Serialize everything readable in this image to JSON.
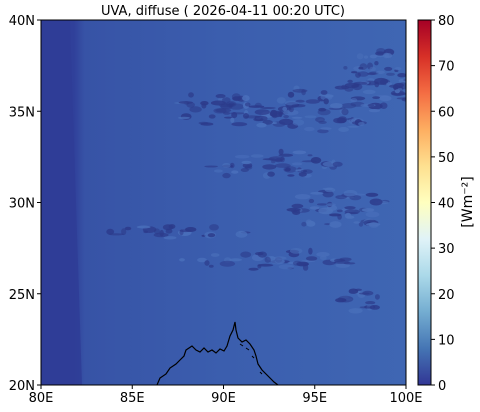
{
  "figure": {
    "title": "UVA, diffuse ( 2026-04-11 00:20 UTC)"
  },
  "map": {
    "lon_range": [
      80,
      100
    ],
    "lat_range": [
      20,
      40
    ],
    "x_ticks": [
      {
        "value": 80,
        "label": "80E"
      },
      {
        "value": 85,
        "label": "85E"
      },
      {
        "value": 90,
        "label": "90E"
      },
      {
        "value": 95,
        "label": "95E"
      },
      {
        "value": 100,
        "label": "100E"
      }
    ],
    "y_ticks": [
      {
        "value": 20,
        "label": "20N"
      },
      {
        "value": 25,
        "label": "25N"
      },
      {
        "value": 30,
        "label": "30N"
      },
      {
        "value": 35,
        "label": "35N"
      },
      {
        "value": 40,
        "label": "40N"
      }
    ],
    "background_color": "#3a5dad",
    "left_band_color": "#2f3f98",
    "cloud_streak_color": "#2c3a8a",
    "coastline_color": "#000000"
  },
  "colorbar": {
    "label": "[Wm⁻²]",
    "range": [
      0,
      80
    ],
    "colormap": "RdYlBu_r",
    "ticks": [
      {
        "value": 0,
        "label": "0"
      },
      {
        "value": 10,
        "label": "10"
      },
      {
        "value": 20,
        "label": "20"
      },
      {
        "value": 30,
        "label": "30"
      },
      {
        "value": 40,
        "label": "40"
      },
      {
        "value": 50,
        "label": "50"
      },
      {
        "value": 60,
        "label": "60"
      },
      {
        "value": 70,
        "label": "70"
      },
      {
        "value": 80,
        "label": "80"
      }
    ],
    "stops": [
      "#313695",
      "#4575b4",
      "#74add1",
      "#abd9e9",
      "#e0f3f8",
      "#ffffbf",
      "#fee090",
      "#fdae61",
      "#f46d43",
      "#d73027",
      "#a50026"
    ]
  }
}
